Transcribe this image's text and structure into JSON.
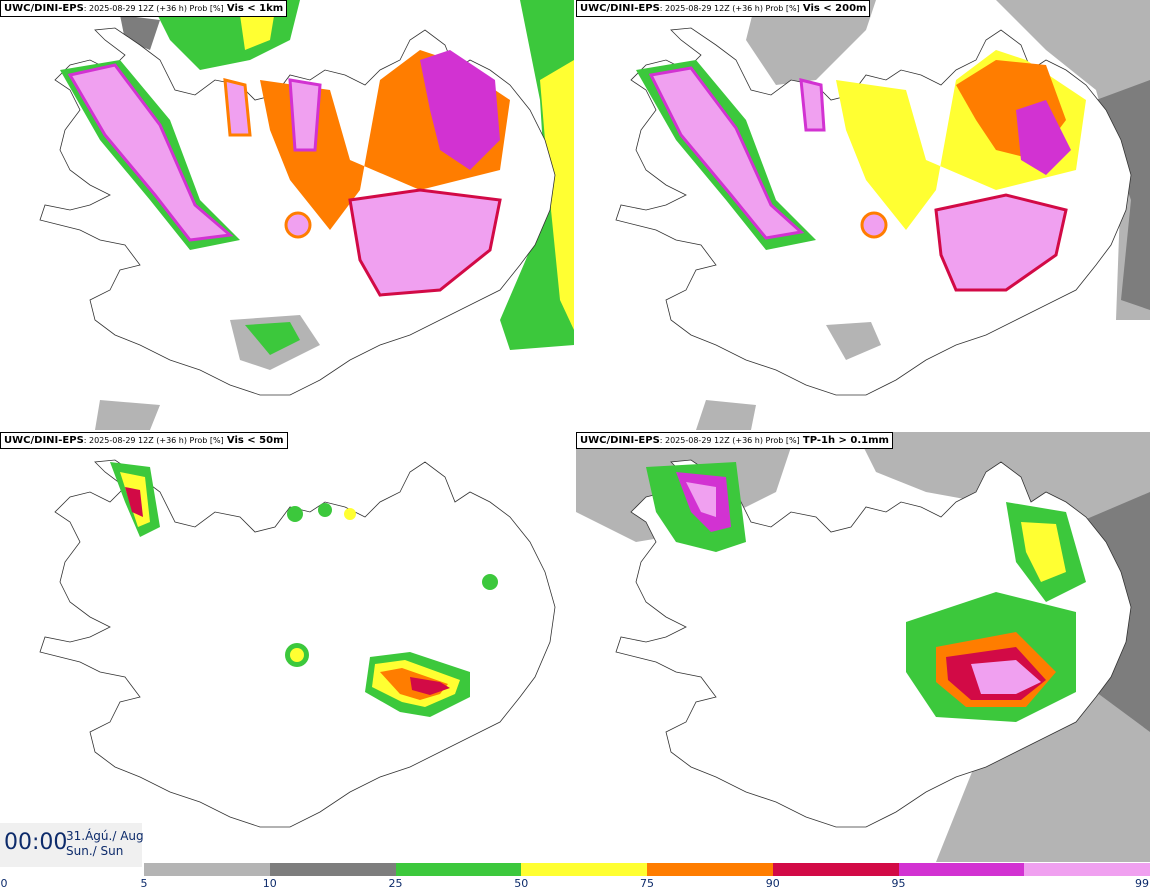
{
  "panels": [
    {
      "model": "UWC/DINI-EPS",
      "meta": ": 2025-08-29 12Z (+36 h) Prob [%]",
      "variable": "Vis < 1km"
    },
    {
      "model": "UWC/DINI-EPS",
      "meta": ": 2025-08-29 12Z (+36 h) Prob [%]",
      "variable": "Vis < 200m"
    },
    {
      "model": "UWC/DINI-EPS",
      "meta": ": 2025-08-29 12Z (+36 h) Prob [%]",
      "variable": "Vis < 50m"
    },
    {
      "model": "UWC/DINI-EPS",
      "meta": ": 2025-08-29 12Z (+36 h) Prob [%]",
      "variable": "TP-1h > 0.1mm"
    }
  ],
  "valid_time": {
    "time": "00:00",
    "date_line1": "31.Ágú./ Aug",
    "date_line2": "Sun./ Sun"
  },
  "colorbar": {
    "ticks": [
      "0",
      "5",
      "10",
      "25",
      "50",
      "75",
      "90",
      "95",
      "99"
    ],
    "colors": [
      "#b4b4b4",
      "#7d7d7d",
      "#3cc83c",
      "#ffff32",
      "#ff7d00",
      "#d20a46",
      "#d232d2",
      "#f0a0f0"
    ]
  }
}
